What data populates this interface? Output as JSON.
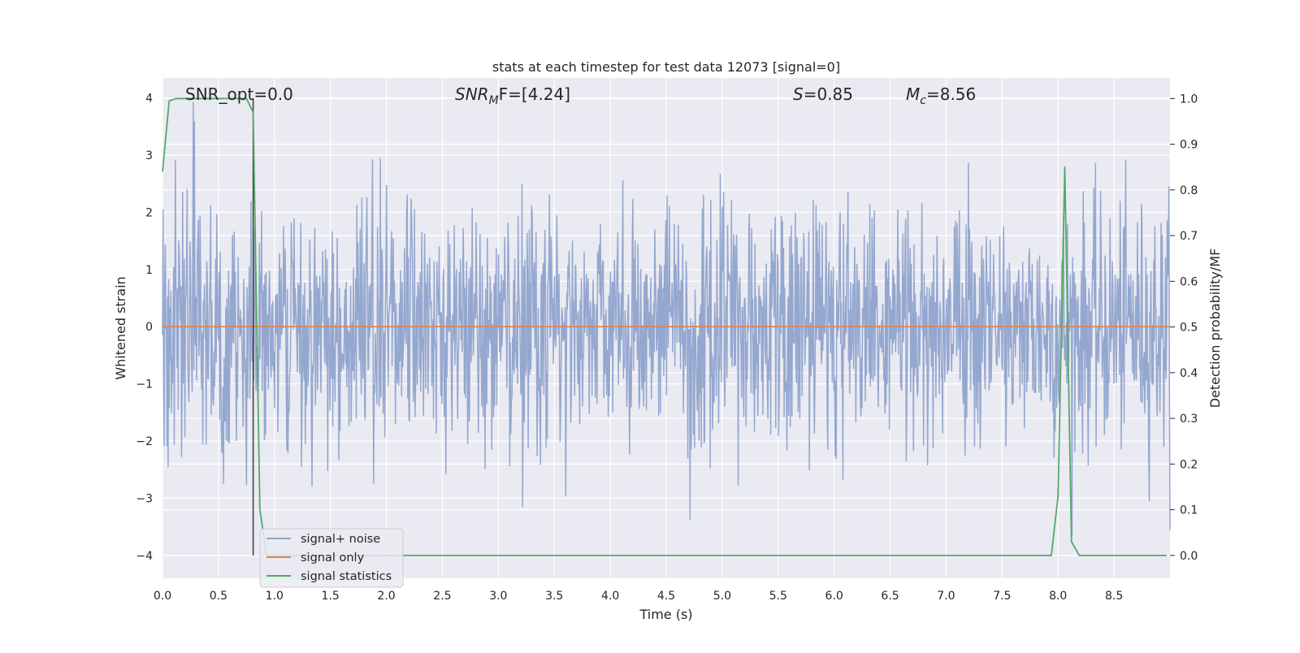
{
  "chart_data": {
    "type": "line",
    "title": "stats at each timestep for test data 12073 [signal=0]",
    "xlabel": "Time (s)",
    "ylabel": "Whitened strain",
    "y2label": "Detection probability/MF",
    "xlim": [
      0.0,
      9.0
    ],
    "ylim": [
      -4.4,
      4.35
    ],
    "y2lim": [
      -0.05,
      1.045
    ],
    "xticks": [
      0.0,
      0.5,
      1.0,
      1.5,
      2.0,
      2.5,
      3.0,
      3.5,
      4.0,
      4.5,
      5.0,
      5.5,
      6.0,
      6.5,
      7.0,
      7.5,
      8.0,
      8.5
    ],
    "xtick_labels": [
      "0.0",
      "0.5",
      "1.0",
      "1.5",
      "2.0",
      "2.5",
      "3.0",
      "3.5",
      "4.0",
      "4.5",
      "5.0",
      "5.5",
      "6.0",
      "6.5",
      "7.0",
      "7.5",
      "8.0",
      "8.5"
    ],
    "yticks": [
      4,
      3,
      2,
      1,
      0,
      -1,
      -2,
      -3,
      -4
    ],
    "ytick_labels": [
      "4",
      "3",
      "2",
      "1",
      "0",
      "−1",
      "−2",
      "−3",
      "−4"
    ],
    "y2ticks": [
      1.0,
      0.9,
      0.8,
      0.7,
      0.6,
      0.5,
      0.4,
      0.3,
      0.2,
      0.1,
      0.0
    ],
    "y2tick_labels": [
      "1.0",
      "0.9",
      "0.8",
      "0.7",
      "0.6",
      "0.5",
      "0.4",
      "0.3",
      "0.2",
      "0.1",
      "0.0"
    ],
    "grid": true,
    "legend_position": "bottom-left",
    "annotations": {
      "snr_opt": "SNR_opt=0.0",
      "snr_mf_prefix": "SNR",
      "snr_mf_sub": "M",
      "snr_mf_suffix": "F=[4.24]",
      "s_prefix": "S",
      "s_suffix": "=0.85",
      "mc_prefix": "M",
      "mc_sub": "c",
      "mc_suffix": "=8.56"
    },
    "series": [
      {
        "name": "signal+ noise",
        "axis": "left",
        "color": "#8fa3cc",
        "kind": "noise",
        "t_start": 0.0,
        "t_end": 9.0,
        "n_samples": 1800,
        "amplitude_range": [
          -3.85,
          3.95
        ]
      },
      {
        "name": "signal only",
        "axis": "left",
        "color": "#dd8452",
        "x": [
          0.0,
          9.0
        ],
        "y": [
          0.0,
          0.0
        ]
      },
      {
        "name": "signal statistics",
        "axis": "right",
        "color": "#55a868",
        "x": [
          0.0,
          0.06,
          0.12,
          0.25,
          0.5,
          0.75,
          0.81,
          0.87,
          0.93,
          1.5,
          3.0,
          5.0,
          7.0,
          7.94,
          8.0,
          8.06,
          8.12,
          8.19,
          8.5,
          8.97
        ],
        "y": [
          0.84,
          0.995,
          1.0,
          1.0,
          1.0,
          1.0,
          0.97,
          0.1,
          0.0,
          0.0,
          0.0,
          0.0,
          0.0,
          0.0,
          0.13,
          0.85,
          0.03,
          0.0,
          0.0,
          0.0
        ]
      }
    ],
    "vertical_marker": {
      "x": 0.81,
      "y_from": -4.0,
      "y_to": 4.0,
      "color": "#3a3a3a"
    }
  }
}
